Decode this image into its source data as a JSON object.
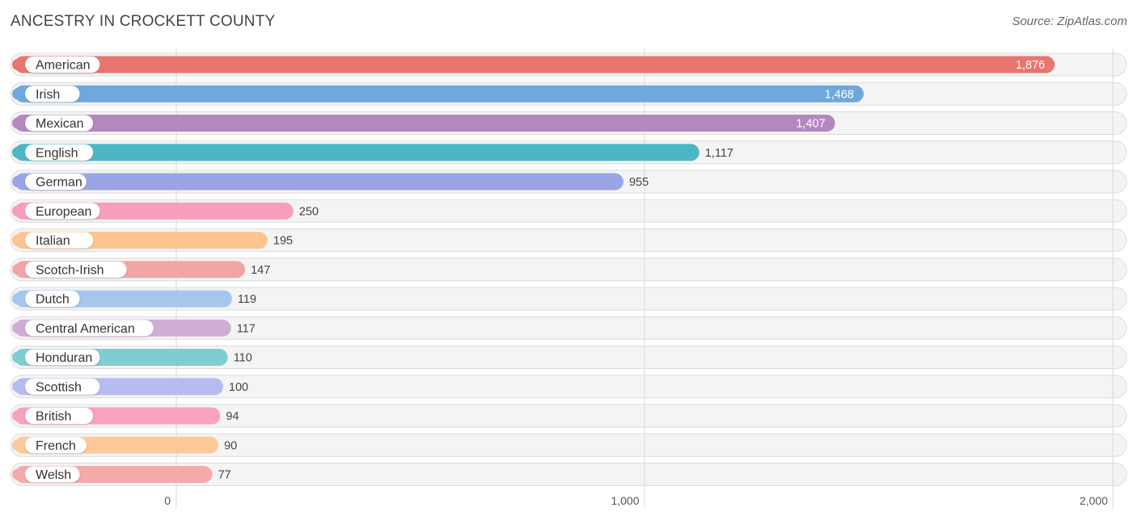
{
  "header": {
    "title": "ANCESTRY IN CROCKETT COUNTY",
    "source": "Source: ZipAtlas.com"
  },
  "chart_data": {
    "type": "bar",
    "orientation": "horizontal",
    "title": "ANCESTRY IN CROCKETT COUNTY",
    "xlim": [
      0,
      2000
    ],
    "ticks": [
      {
        "value": 0,
        "label": "0"
      },
      {
        "value": 1000,
        "label": "1,000"
      },
      {
        "value": 2000,
        "label": "2,000"
      }
    ],
    "grid": true,
    "categories": [
      "American",
      "Irish",
      "Mexican",
      "English",
      "German",
      "European",
      "Italian",
      "Scotch-Irish",
      "Dutch",
      "Central American",
      "Honduran",
      "Scottish",
      "British",
      "French",
      "Welsh"
    ],
    "values": [
      1876,
      1468,
      1407,
      1117,
      955,
      250,
      195,
      147,
      119,
      117,
      110,
      100,
      94,
      90,
      77
    ],
    "value_labels": [
      "1,876",
      "1,468",
      "1,407",
      "1,117",
      "955",
      "250",
      "195",
      "147",
      "119",
      "117",
      "110",
      "100",
      "94",
      "90",
      "77"
    ],
    "colors": [
      "#e8756f",
      "#6fa8dc",
      "#b587c0",
      "#4db6c4",
      "#9aa5e6",
      "#f59fbd",
      "#fcc58f",
      "#f0a6a6",
      "#a5c7ee",
      "#cfaed6",
      "#7fcdd2",
      "#b7bcf0",
      "#f8a1c0",
      "#fcc99a",
      "#f2aaaa"
    ]
  }
}
